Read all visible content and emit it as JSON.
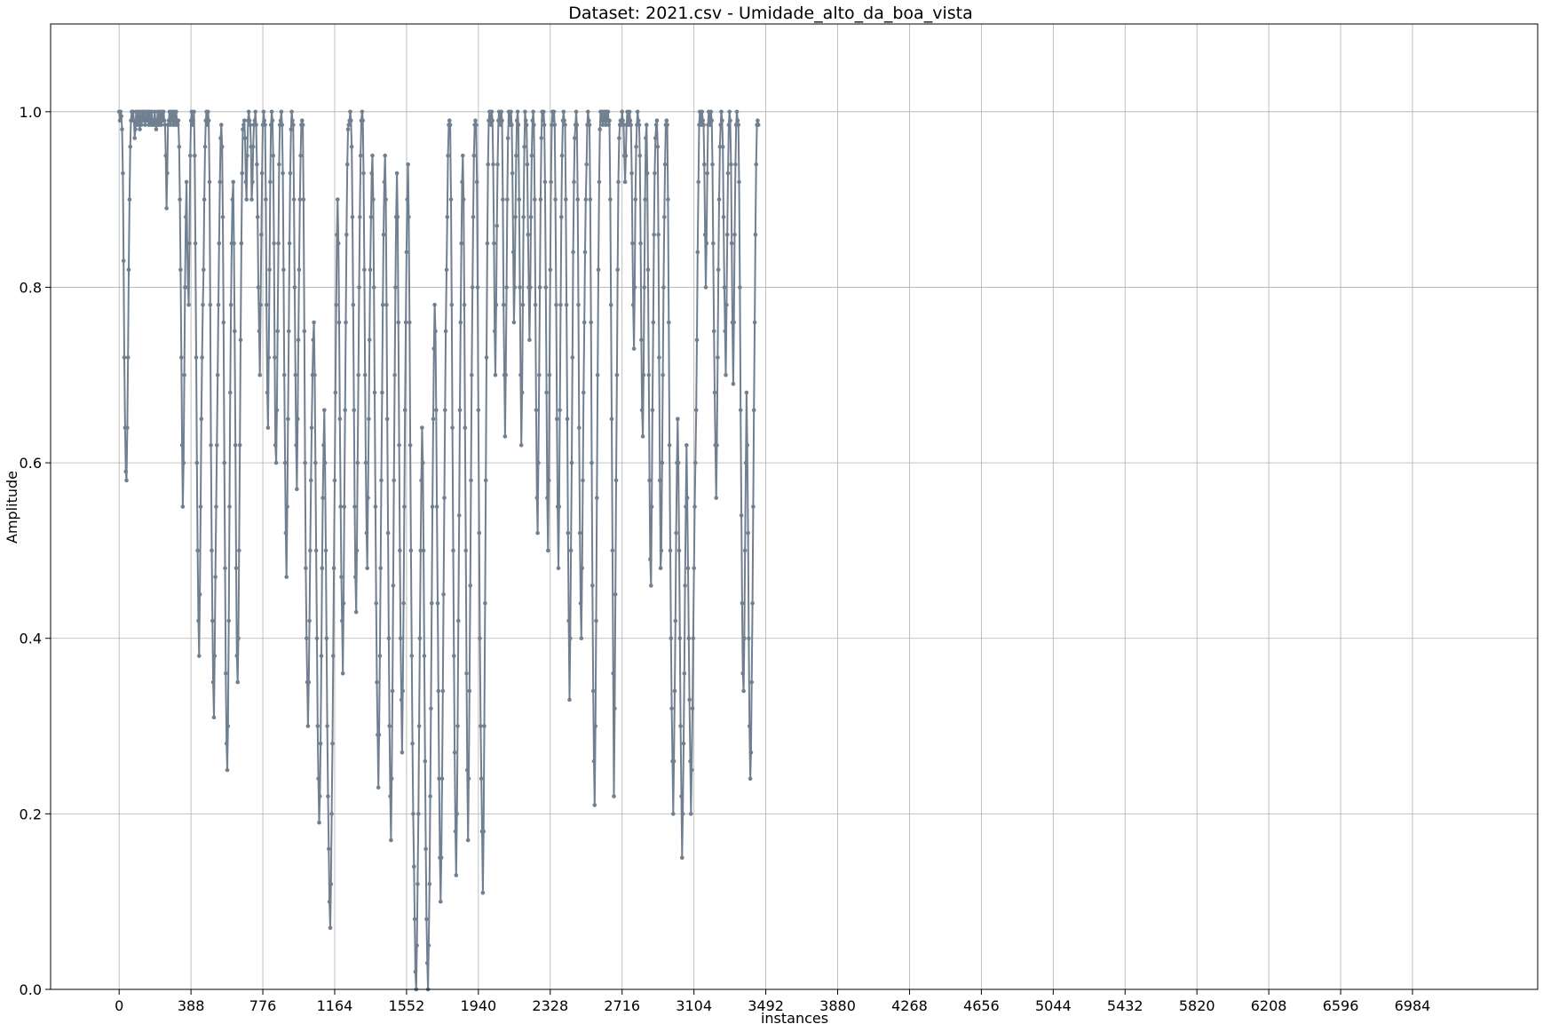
{
  "chart_data": {
    "type": "line",
    "title": "Dataset: 2021.csv - Umidade_alto_da_boa_vista",
    "xlabel": "instances",
    "ylabel": "Amplitude",
    "xlim": [
      -370,
      7660
    ],
    "ylim": [
      0.0,
      1.1
    ],
    "xticks": [
      0,
      388,
      776,
      1164,
      1552,
      1940,
      2328,
      2716,
      3104,
      3492,
      3880,
      4268,
      4656,
      5044,
      5432,
      5820,
      6208,
      6596,
      6984
    ],
    "yticks": [
      0.0,
      0.2,
      0.4,
      0.6,
      0.8,
      1.0
    ],
    "ytick_labels": [
      "0.0",
      "0.2",
      "0.4",
      "0.6",
      "0.8",
      "1.0"
    ],
    "grid": true,
    "line_color": "#708090",
    "marker": "circle",
    "series": [
      {
        "x_start": 0,
        "x_step": 4,
        "values": [
          1.0,
          0.99,
          1.0,
          0.995,
          0.98,
          0.93,
          0.83,
          0.72,
          0.64,
          0.59,
          0.58,
          0.64,
          0.72,
          0.82,
          0.9,
          0.96,
          0.99,
          1.0,
          0.99,
          1.0,
          0.99,
          0.97,
          0.98,
          1.0,
          0.99,
          0.985,
          1.0,
          0.99,
          0.98,
          1.0,
          0.985,
          0.99,
          1.0,
          0.99,
          1.0,
          0.985,
          0.99,
          1.0,
          0.99,
          1.0,
          0.985,
          1.0,
          0.99,
          0.985,
          1.0,
          0.99,
          0.985,
          0.985,
          1.0,
          0.99,
          0.98,
          0.985,
          1.0,
          0.99,
          0.985,
          1.0,
          0.99,
          0.985,
          1.0,
          0.99,
          1.0,
          0.99,
          0.985,
          0.95,
          0.89,
          0.93,
          0.985,
          0.99,
          1.0,
          0.985,
          0.99,
          1.0,
          0.99,
          0.985,
          1.0,
          0.99,
          0.985,
          1.0,
          0.99,
          0.985,
          0.99,
          0.96,
          0.9,
          0.82,
          0.72,
          0.62,
          0.55,
          0.6,
          0.7,
          0.8,
          0.88,
          0.92,
          0.85,
          0.8,
          0.78,
          0.85,
          0.95,
          0.99,
          1.0,
          0.985,
          0.99,
          1.0,
          0.95,
          0.85,
          0.72,
          0.6,
          0.5,
          0.42,
          0.38,
          0.45,
          0.55,
          0.65,
          0.72,
          0.78,
          0.82,
          0.9,
          0.96,
          0.99,
          1.0,
          0.985,
          1.0,
          0.99,
          0.92,
          0.78,
          0.62,
          0.5,
          0.42,
          0.35,
          0.31,
          0.38,
          0.47,
          0.55,
          0.62,
          0.7,
          0.78,
          0.85,
          0.92,
          0.97,
          0.985,
          0.96,
          0.88,
          0.76,
          0.6,
          0.48,
          0.36,
          0.28,
          0.25,
          0.3,
          0.42,
          0.55,
          0.68,
          0.78,
          0.85,
          0.9,
          0.92,
          0.85,
          0.75,
          0.62,
          0.48,
          0.38,
          0.35,
          0.4,
          0.5,
          0.62,
          0.74,
          0.85,
          0.93,
          0.98,
          0.985,
          0.99,
          0.97,
          0.92,
          0.9,
          0.95,
          0.99,
          1.0,
          0.99,
          0.985,
          0.96,
          0.9,
          0.92,
          0.96,
          0.985,
          0.99,
          1.0,
          0.985,
          0.94,
          0.88,
          0.8,
          0.75,
          0.7,
          0.78,
          0.86,
          0.93,
          0.985,
          1.0,
          0.99,
          0.985,
          0.9,
          0.78,
          0.68,
          0.64,
          0.72,
          0.82,
          0.92,
          0.985,
          1.0,
          0.99,
          0.95,
          0.85,
          0.72,
          0.62,
          0.6,
          0.66,
          0.75,
          0.85,
          0.94,
          0.985,
          0.99,
          1.0,
          0.985,
          0.93,
          0.82,
          0.7,
          0.6,
          0.52,
          0.47,
          0.55,
          0.65,
          0.75,
          0.85,
          0.93,
          0.98,
          1.0,
          0.99,
          0.985,
          0.9,
          0.8,
          0.7,
          0.62,
          0.57,
          0.65,
          0.74,
          0.82,
          0.9,
          0.95,
          0.985,
          0.99,
          0.985,
          0.9,
          0.75,
          0.6,
          0.48,
          0.4,
          0.35,
          0.3,
          0.35,
          0.42,
          0.5,
          0.58,
          0.64,
          0.7,
          0.74,
          0.76,
          0.7,
          0.6,
          0.5,
          0.4,
          0.3,
          0.24,
          0.19,
          0.22,
          0.28,
          0.38,
          0.48,
          0.56,
          0.62,
          0.66,
          0.6,
          0.5,
          0.4,
          0.3,
          0.22,
          0.16,
          0.1,
          0.07,
          0.12,
          0.2,
          0.28,
          0.38,
          0.48,
          0.58,
          0.68,
          0.78,
          0.86,
          0.9,
          0.85,
          0.76,
          0.65,
          0.55,
          0.47,
          0.42,
          0.36,
          0.44,
          0.55,
          0.66,
          0.76,
          0.86,
          0.94,
          0.98,
          0.985,
          0.99,
          1.0,
          0.99,
          0.96,
          0.88,
          0.78,
          0.66,
          0.55,
          0.47,
          0.43,
          0.5,
          0.6,
          0.7,
          0.8,
          0.88,
          0.95,
          0.99,
          1.0,
          0.99,
          0.93,
          0.82,
          0.7,
          0.6,
          0.52,
          0.48,
          0.56,
          0.65,
          0.74,
          0.82,
          0.88,
          0.93,
          0.95,
          0.9,
          0.8,
          0.68,
          0.55,
          0.44,
          0.35,
          0.29,
          0.23,
          0.29,
          0.38,
          0.48,
          0.58,
          0.68,
          0.78,
          0.86,
          0.92,
          0.95,
          0.9,
          0.78,
          0.65,
          0.52,
          0.4,
          0.3,
          0.22,
          0.17,
          0.24,
          0.34,
          0.46,
          0.58,
          0.7,
          0.8,
          0.88,
          0.93,
          0.88,
          0.76,
          0.62,
          0.5,
          0.4,
          0.33,
          0.27,
          0.34,
          0.44,
          0.55,
          0.66,
          0.76,
          0.84,
          0.9,
          0.94,
          0.88,
          0.76,
          0.62,
          0.5,
          0.38,
          0.28,
          0.2,
          0.14,
          0.08,
          0.02,
          0.0,
          0.05,
          0.12,
          0.2,
          0.3,
          0.4,
          0.5,
          0.58,
          0.64,
          0.6,
          0.5,
          0.38,
          0.26,
          0.16,
          0.08,
          0.03,
          0.0,
          0.05,
          0.12,
          0.22,
          0.32,
          0.44,
          0.55,
          0.65,
          0.73,
          0.78,
          0.75,
          0.66,
          0.55,
          0.44,
          0.34,
          0.24,
          0.15,
          0.1,
          0.15,
          0.24,
          0.34,
          0.45,
          0.56,
          0.66,
          0.75,
          0.82,
          0.88,
          0.95,
          0.985,
          0.99,
          0.985,
          0.9,
          0.78,
          0.64,
          0.5,
          0.38,
          0.27,
          0.18,
          0.13,
          0.2,
          0.3,
          0.42,
          0.54,
          0.66,
          0.76,
          0.85,
          0.92,
          0.95,
          0.9,
          0.78,
          0.64,
          0.5,
          0.36,
          0.25,
          0.17,
          0.24,
          0.34,
          0.46,
          0.58,
          0.7,
          0.8,
          0.88,
          0.95,
          0.985,
          0.99,
          0.985,
          0.92,
          0.8,
          0.66,
          0.52,
          0.4,
          0.3,
          0.24,
          0.18,
          0.11,
          0.18,
          0.3,
          0.44,
          0.58,
          0.72,
          0.85,
          0.94,
          0.99,
          1.0,
          0.99,
          0.985,
          1.0,
          0.99,
          0.94,
          0.85,
          0.75,
          0.7,
          0.78,
          0.87,
          0.94,
          0.99,
          1.0,
          0.99,
          0.985,
          1.0,
          0.99,
          0.9,
          0.78,
          0.7,
          0.63,
          0.7,
          0.8,
          0.9,
          0.97,
          1.0,
          0.99,
          0.985,
          1.0,
          0.985,
          0.93,
          0.84,
          0.76,
          0.8,
          0.88,
          0.95,
          0.99,
          1.0,
          0.985,
          0.9,
          0.8,
          0.7,
          0.62,
          0.68,
          0.78,
          0.88,
          0.96,
          1.0,
          0.99,
          0.985,
          0.94,
          0.86,
          0.8,
          0.74,
          0.8,
          0.88,
          0.95,
          0.99,
          1.0,
          0.985,
          0.9,
          0.78,
          0.66,
          0.56,
          0.52,
          0.6,
          0.7,
          0.8,
          0.9,
          0.97,
          1.0,
          0.99,
          1.0,
          0.985,
          0.92,
          0.8,
          0.68,
          0.56,
          0.5,
          0.58,
          0.7,
          0.82,
          0.92,
          0.985,
          1.0,
          0.99,
          1.0,
          0.985,
          0.9,
          0.78,
          0.65,
          0.55,
          0.48,
          0.55,
          0.66,
          0.78,
          0.88,
          0.95,
          0.99,
          1.0,
          0.99,
          0.985,
          0.9,
          0.78,
          0.65,
          0.52,
          0.42,
          0.33,
          0.4,
          0.5,
          0.6,
          0.72,
          0.84,
          0.92,
          0.97,
          0.985,
          1.0,
          0.985,
          0.9,
          0.78,
          0.64,
          0.52,
          0.44,
          0.4,
          0.48,
          0.58,
          0.68,
          0.76,
          0.84,
          0.9,
          0.94,
          0.985,
          1.0,
          0.99,
          0.985,
          0.9,
          0.76,
          0.6,
          0.46,
          0.34,
          0.26,
          0.21,
          0.3,
          0.42,
          0.56,
          0.7,
          0.82,
          0.92,
          0.98,
          1.0,
          0.99,
          1.0,
          0.985,
          0.99,
          1.0,
          0.99,
          0.985,
          1.0,
          0.99,
          1.0,
          0.985,
          0.99,
          0.9,
          0.78,
          0.65,
          0.5,
          0.36,
          0.22,
          0.32,
          0.45,
          0.58,
          0.7,
          0.82,
          0.92,
          0.97,
          0.985,
          0.99,
          0.985,
          1.0,
          0.99,
          0.985,
          0.95,
          0.92,
          0.95,
          0.985,
          1.0,
          0.99,
          0.985,
          1.0,
          0.99,
          0.985,
          0.93,
          0.85,
          0.78,
          0.73,
          0.8,
          0.9,
          0.96,
          0.985,
          1.0,
          0.99,
          0.985,
          0.95,
          0.85,
          0.74,
          0.66,
          0.63,
          0.7,
          0.8,
          0.9,
          0.97,
          0.985,
          0.93,
          0.82,
          0.7,
          0.58,
          0.49,
          0.46,
          0.55,
          0.66,
          0.76,
          0.86,
          0.93,
          0.97,
          0.985,
          0.99,
          0.96,
          0.86,
          0.72,
          0.58,
          0.48,
          0.5,
          0.6,
          0.7,
          0.8,
          0.88,
          0.94,
          0.985,
          0.99,
          0.985,
          0.9,
          0.76,
          0.62,
          0.5,
          0.4,
          0.32,
          0.26,
          0.2,
          0.26,
          0.34,
          0.42,
          0.52,
          0.6,
          0.65,
          0.6,
          0.5,
          0.4,
          0.3,
          0.22,
          0.15,
          0.2,
          0.28,
          0.36,
          0.46,
          0.55,
          0.62,
          0.56,
          0.48,
          0.4,
          0.33,
          0.26,
          0.2,
          0.25,
          0.32,
          0.4,
          0.48,
          0.55,
          0.6,
          0.66,
          0.74,
          0.84,
          0.92,
          0.985,
          1.0,
          0.99,
          0.985,
          1.0,
          0.99,
          0.985,
          0.94,
          0.86,
          0.8,
          0.85,
          0.93,
          0.985,
          1.0,
          0.99,
          0.985,
          1.0,
          0.99,
          0.94,
          0.85,
          0.75,
          0.68,
          0.62,
          0.56,
          0.62,
          0.72,
          0.82,
          0.9,
          0.96,
          0.985,
          1.0,
          0.99,
          0.96,
          0.88,
          0.8,
          0.75,
          0.7,
          0.78,
          0.86,
          0.93,
          0.985,
          1.0,
          0.99,
          0.94,
          0.85,
          0.76,
          0.69,
          0.76,
          0.86,
          0.94,
          0.985,
          1.0,
          0.99,
          0.985,
          0.92,
          0.8,
          0.66,
          0.54,
          0.44,
          0.36,
          0.34,
          0.4,
          0.5,
          0.6,
          0.68,
          0.62,
          0.52,
          0.4,
          0.3,
          0.24,
          0.27,
          0.35,
          0.44,
          0.55,
          0.66,
          0.76,
          0.86,
          0.94,
          0.985,
          0.99,
          0.985
        ],
        "note": ""
      }
    ]
  }
}
